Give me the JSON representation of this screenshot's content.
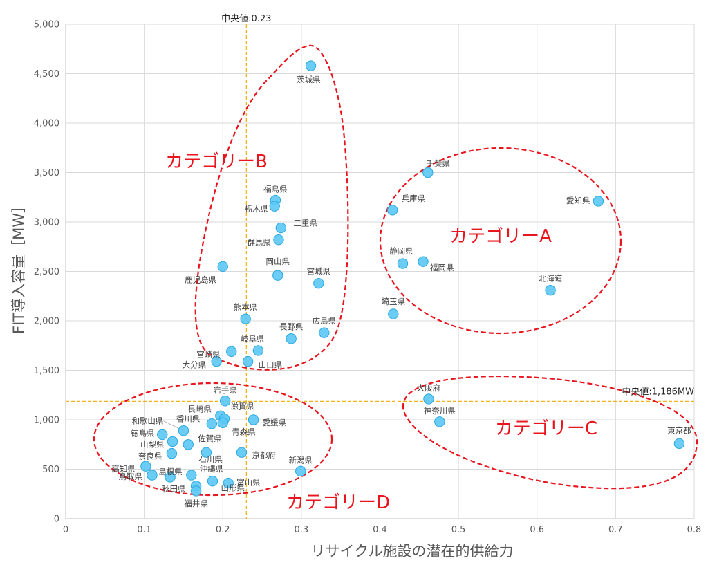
{
  "chart_data": {
    "type": "scatter",
    "title": "",
    "xlabel": "リサイクル施設の潜在的供給力",
    "ylabel": "FIT導入容量［MW］",
    "xlim": [
      0,
      0.8
    ],
    "ylim": [
      0,
      5000
    ],
    "x_ticks": [
      "0",
      "0.1",
      "0.2",
      "0.3",
      "0.4",
      "0.5",
      "0.6",
      "0.7",
      "0.8"
    ],
    "y_ticks": [
      "0",
      "500",
      "1,000",
      "1,500",
      "2,000",
      "2,500",
      "3,000",
      "3,500",
      "4,000",
      "4,500",
      "5,000"
    ],
    "grid": true,
    "marker_color": "#5bc8f5",
    "marker_edge_color": "#2aa8e0",
    "category_color": "#e8141e",
    "median_color": "#f2b418",
    "medians": {
      "x": {
        "value": 0.23,
        "label": "中央値:0.23"
      },
      "y": {
        "value": 1186,
        "label": "中央値:1,186MW"
      }
    },
    "categories": [
      {
        "name": "カテゴリーA"
      },
      {
        "name": "カテゴリーB"
      },
      {
        "name": "カテゴリーC"
      },
      {
        "name": "カテゴリーD"
      }
    ],
    "points": [
      {
        "name": "茨城県",
        "x": 0.312,
        "y": 4580
      },
      {
        "name": "千葉県",
        "x": 0.461,
        "y": 3500
      },
      {
        "name": "愛知県",
        "x": 0.678,
        "y": 3210
      },
      {
        "name": "兵庫県",
        "x": 0.416,
        "y": 3120
      },
      {
        "name": "福島県",
        "x": 0.267,
        "y": 3220
      },
      {
        "name": "栃木県",
        "x": 0.266,
        "y": 3160
      },
      {
        "name": "三重県",
        "x": 0.274,
        "y": 2940
      },
      {
        "name": "群馬県",
        "x": 0.271,
        "y": 2820
      },
      {
        "name": "静岡県",
        "x": 0.429,
        "y": 2580
      },
      {
        "name": "福岡県",
        "x": 0.455,
        "y": 2600
      },
      {
        "name": "鹿児島県",
        "x": 0.2,
        "y": 2550
      },
      {
        "name": "岡山県",
        "x": 0.27,
        "y": 2460
      },
      {
        "name": "宮城県",
        "x": 0.322,
        "y": 2380
      },
      {
        "name": "北海道",
        "x": 0.617,
        "y": 2310
      },
      {
        "name": "埼玉県",
        "x": 0.417,
        "y": 2070
      },
      {
        "name": "熊本県",
        "x": 0.229,
        "y": 2020
      },
      {
        "name": "広島県",
        "x": 0.329,
        "y": 1880
      },
      {
        "name": "長野県",
        "x": 0.287,
        "y": 1820
      },
      {
        "name": "岐阜県",
        "x": 0.245,
        "y": 1700
      },
      {
        "name": "宮崎県",
        "x": 0.211,
        "y": 1690
      },
      {
        "name": "大分県",
        "x": 0.192,
        "y": 1590
      },
      {
        "name": "山口県",
        "x": 0.232,
        "y": 1590
      },
      {
        "name": "大阪府",
        "x": 0.462,
        "y": 1210
      },
      {
        "name": "神奈川県",
        "x": 0.476,
        "y": 980
      },
      {
        "name": "東京都",
        "x": 0.781,
        "y": 760
      },
      {
        "name": "岩手県",
        "x": 0.203,
        "y": 1190
      },
      {
        "name": "長崎県",
        "x": 0.197,
        "y": 1040
      },
      {
        "name": "滋賀県",
        "x": 0.202,
        "y": 1010
      },
      {
        "name": "香川県",
        "x": 0.186,
        "y": 960
      },
      {
        "name": "青森県",
        "x": 0.2,
        "y": 970
      },
      {
        "name": "愛媛県",
        "x": 0.239,
        "y": 1000
      },
      {
        "name": "和歌山県",
        "x": 0.15,
        "y": 890
      },
      {
        "name": "徳島県",
        "x": 0.123,
        "y": 850
      },
      {
        "name": "山梨県",
        "x": 0.136,
        "y": 780
      },
      {
        "name": "佐賀県",
        "x": 0.156,
        "y": 750
      },
      {
        "name": "奈良県",
        "x": 0.135,
        "y": 660
      },
      {
        "name": "石川県",
        "x": 0.179,
        "y": 670
      },
      {
        "name": "京都府",
        "x": 0.224,
        "y": 670
      },
      {
        "name": "高知県",
        "x": 0.102,
        "y": 530
      },
      {
        "name": "鳥取県",
        "x": 0.11,
        "y": 440
      },
      {
        "name": "島根県",
        "x": 0.133,
        "y": 420
      },
      {
        "name": "沖縄県",
        "x": 0.16,
        "y": 440
      },
      {
        "name": "新潟県",
        "x": 0.299,
        "y": 480
      },
      {
        "name": "富山県",
        "x": 0.207,
        "y": 360
      },
      {
        "name": "秋田県",
        "x": 0.166,
        "y": 330
      },
      {
        "name": "山形県",
        "x": 0.187,
        "y": 380
      },
      {
        "name": "福井県",
        "x": 0.166,
        "y": 280
      }
    ]
  }
}
